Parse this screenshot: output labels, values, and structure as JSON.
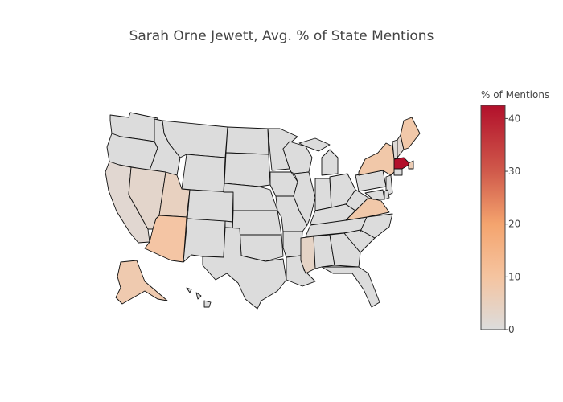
{
  "title": "Sarah Orne Jewett, Avg. % of State Mentions",
  "colorbar": {
    "title": "% of Mentions",
    "min": 0,
    "max": 42.5,
    "ticks": [
      0,
      10,
      20,
      30,
      40
    ],
    "colorscale": [
      "#dcdcdc",
      "#f5c4a0",
      "#f4a46e",
      "#d05a4b",
      "#b2102b"
    ]
  },
  "chart_data": {
    "type": "choropleth",
    "scope": "usa",
    "title": "Sarah Orne Jewett, Avg. % of State Mentions",
    "colorbar_title": "% of Mentions",
    "range": [
      0,
      42.5
    ],
    "values": {
      "MA": 42.5,
      "AZ": 10,
      "ME": 9,
      "NY": 9,
      "VA": 9,
      "AK": 8,
      "RI": 7,
      "UT": 5,
      "NV": 3,
      "CA": 2,
      "MS": 4,
      "NH": 2,
      "VT": 1
    }
  }
}
